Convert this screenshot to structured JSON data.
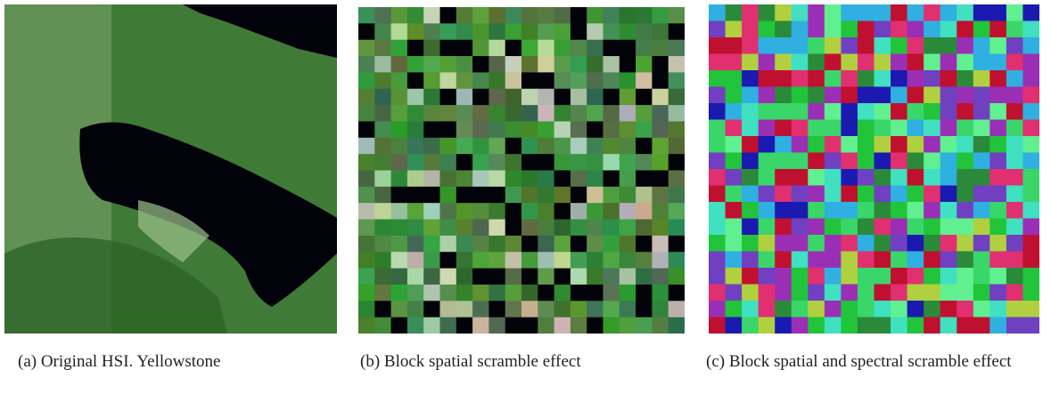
{
  "figure": {
    "panels": [
      {
        "caption": "(a) Original HSI. Yellowstone"
      },
      {
        "caption": "(b) Block spatial scramble effect"
      },
      {
        "caption": "(c) Block spatial and spectral scramble effect"
      }
    ]
  }
}
